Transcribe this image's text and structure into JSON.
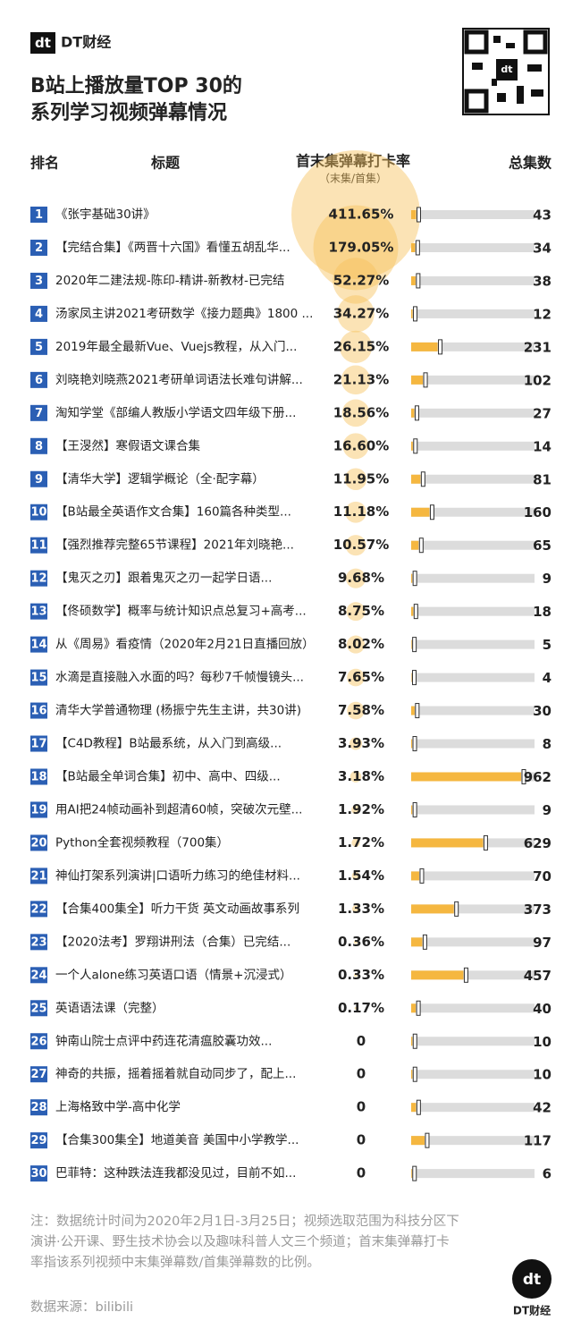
{
  "header": {
    "brand": "DT财经",
    "title_lines": [
      "B站上播放量TOP 30的",
      "系列学习视频弹幕情况"
    ]
  },
  "columns": {
    "rank": "排名",
    "title": "标题",
    "rate": "首末集弹幕打卡率",
    "rate_note": "（末集/首集）",
    "episodes": "总集数"
  },
  "rows": [
    {
      "rank": 1,
      "title": "《张宇基础30讲》",
      "rate": 411.65,
      "rate_label": "411.65%",
      "episodes": 43
    },
    {
      "rank": 2,
      "title": "【完结合集】《两晋十六国》看懂五胡乱华...",
      "rate": 179.05,
      "rate_label": "179.05%",
      "episodes": 34
    },
    {
      "rank": 3,
      "title": "2020年二建法规-陈印-精讲-新教材-已完结",
      "rate": 52.27,
      "rate_label": "52.27%",
      "episodes": 38
    },
    {
      "rank": 4,
      "title": "汤家凤主讲2021考研数学《接力题典》1800 ...",
      "rate": 34.27,
      "rate_label": "34.27%",
      "episodes": 12
    },
    {
      "rank": 5,
      "title": "2019年最全最新Vue、Vuejs教程，从入门...",
      "rate": 26.15,
      "rate_label": "26.15%",
      "episodes": 231
    },
    {
      "rank": 6,
      "title": "刘晓艳刘晓燕2021考研单词语法长难句讲解...",
      "rate": 21.13,
      "rate_label": "21.13%",
      "episodes": 102
    },
    {
      "rank": 7,
      "title": "淘知学堂《部编人教版小学语文四年级下册...",
      "rate": 18.56,
      "rate_label": "18.56%",
      "episodes": 27
    },
    {
      "rank": 8,
      "title": "【王渂然】寒假语文课合集",
      "rate": 16.6,
      "rate_label": "16.60%",
      "episodes": 14
    },
    {
      "rank": 9,
      "title": "【清华大学】逻辑学概论（全·配字幕）",
      "rate": 11.95,
      "rate_label": "11.95%",
      "episodes": 81
    },
    {
      "rank": 10,
      "title": "【B站最全英语作文合集】160篇各种类型...",
      "rate": 11.18,
      "rate_label": "11.18%",
      "episodes": 160
    },
    {
      "rank": 11,
      "title": "【强烈推荐完整65节课程】2021年刘晓艳...",
      "rate": 10.57,
      "rate_label": "10.57%",
      "episodes": 65
    },
    {
      "rank": 12,
      "title": "【鬼灭之刃】跟着鬼灭之刃一起学日语...",
      "rate": 9.68,
      "rate_label": "9.68%",
      "episodes": 9
    },
    {
      "rank": 13,
      "title": "【佟硕数学】概率与统计知识点总复习+高考...",
      "rate": 8.75,
      "rate_label": "8.75%",
      "episodes": 18
    },
    {
      "rank": 14,
      "title": "从《周易》看疫情（2020年2月21日直播回放）",
      "rate": 8.02,
      "rate_label": "8.02%",
      "episodes": 5
    },
    {
      "rank": 15,
      "title": "水滴是直接融入水面的吗？每秒7千帧慢镜头...",
      "rate": 7.65,
      "rate_label": "7.65%",
      "episodes": 4
    },
    {
      "rank": 16,
      "title": "清华大学普通物理 (杨振宁先生主讲，共30讲)",
      "rate": 7.58,
      "rate_label": "7.58%",
      "episodes": 30
    },
    {
      "rank": 17,
      "title": "【C4D教程】B站最系统，从入门到高级...",
      "rate": 3.93,
      "rate_label": "3.93%",
      "episodes": 8
    },
    {
      "rank": 18,
      "title": "【B站最全单词合集】初中、高中、四级...",
      "rate": 3.18,
      "rate_label": "3.18%",
      "episodes": 962
    },
    {
      "rank": 19,
      "title": "用AI把24帧动画补到超清60帧，突破次元壁...",
      "rate": 1.92,
      "rate_label": "1.92%",
      "episodes": 9
    },
    {
      "rank": 20,
      "title": "Python全套视频教程（700集）",
      "rate": 1.72,
      "rate_label": "1.72%",
      "episodes": 629
    },
    {
      "rank": 21,
      "title": "神仙打架系列演讲|口语听力练习的绝佳材料...",
      "rate": 1.54,
      "rate_label": "1.54%",
      "episodes": 70
    },
    {
      "rank": 22,
      "title": "【合集400集全】听力干货 英文动画故事系列",
      "rate": 1.33,
      "rate_label": "1.33%",
      "episodes": 373
    },
    {
      "rank": 23,
      "title": "【2020法考】罗翔讲刑法（合集）已完结...",
      "rate": 0.36,
      "rate_label": "0.36%",
      "episodes": 97
    },
    {
      "rank": 24,
      "title": "一个人alone练习英语口语（情景+沉浸式）",
      "rate": 0.33,
      "rate_label": "0.33%",
      "episodes": 457
    },
    {
      "rank": 25,
      "title": "英语语法课（完整）",
      "rate": 0.17,
      "rate_label": "0.17%",
      "episodes": 40
    },
    {
      "rank": 26,
      "title": "钟南山院士点评中药连花清瘟胶囊功效...",
      "rate": 0,
      "rate_label": "0",
      "episodes": 10
    },
    {
      "rank": 27,
      "title": "神奇的共振，摇着摇着就自动同步了，配上...",
      "rate": 0,
      "rate_label": "0",
      "episodes": 10
    },
    {
      "rank": 28,
      "title": "上海格致中学-高中化学",
      "rate": 0,
      "rate_label": "0",
      "episodes": 42
    },
    {
      "rank": 29,
      "title": "【合集300集全】地道美音 美国中小学教学...",
      "rate": 0,
      "rate_label": "0",
      "episodes": 117
    },
    {
      "rank": 30,
      "title": "巴菲特：这种跌法连我都没见过，目前不如...",
      "rate": 0,
      "rate_label": "0",
      "episodes": 6
    }
  ],
  "footer": {
    "notes": [
      "注：数据统计时间为2020年2月1日-3月25日；视频选取范围为科技分区下",
      "演讲·公开课、野生技术协会以及趣味科普人文三个频道；首末集弹幕打卡",
      "率指该系列视频中末集弹幕数/首集弹幕数的比例。"
    ],
    "source": "数据来源：bilibili",
    "brand": "DT财经"
  }
}
